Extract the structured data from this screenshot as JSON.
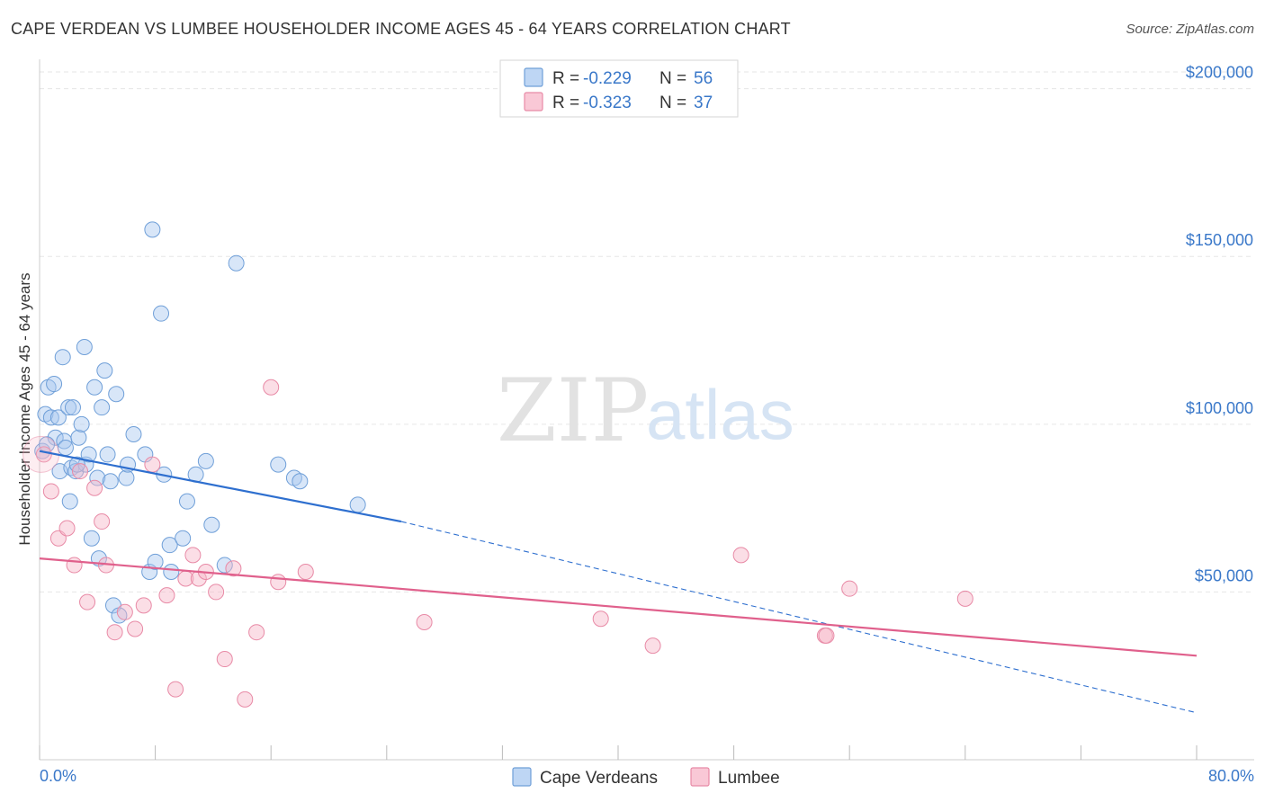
{
  "header": {
    "title": "CAPE VERDEAN VS LUMBEE HOUSEHOLDER INCOME AGES 45 - 64 YEARS CORRELATION CHART",
    "source": "Source: ZipAtlas.com"
  },
  "watermark": {
    "zip": "ZIP",
    "atlas": "atlas"
  },
  "chart_data": {
    "type": "scatter",
    "title": "CAPE VERDEAN VS LUMBEE HOUSEHOLDER INCOME AGES 45 - 64 YEARS CORRELATION CHART",
    "ylabel": "Householder Income Ages 45 - 64 years",
    "xlim": [
      0,
      80
    ],
    "ylim": [
      0,
      205000
    ],
    "x_tick_labels": [
      "0.0%",
      "80.0%"
    ],
    "y_ticks": [
      {
        "value": 50000,
        "label": "$50,000"
      },
      {
        "value": 100000,
        "label": "$100,000"
      },
      {
        "value": 150000,
        "label": "$150,000"
      },
      {
        "value": 200000,
        "label": "$200,000"
      }
    ],
    "grid": true,
    "legend_top": [
      {
        "r_label": "R = ",
        "r_value": "-0.229",
        "n_label": "N = ",
        "n_value": "56",
        "color": "#a8c8f0"
      },
      {
        "r_label": "R = ",
        "r_value": "-0.323",
        "n_label": "N = ",
        "n_value": "37",
        "color": "#f7b6c8"
      }
    ],
    "series": [
      {
        "name": "Cape Verdeans",
        "color": "#a8c8f0",
        "stroke": "#6f9fd8",
        "line_color": "#2e6fcf",
        "trend": {
          "x0": 0,
          "y0": 92000,
          "x1": 25,
          "y1": 71000,
          "x_ext": 80,
          "y_ext": 14000
        },
        "points": [
          [
            0.2,
            92000
          ],
          [
            0.4,
            103000
          ],
          [
            0.6,
            111000
          ],
          [
            0.8,
            102000
          ],
          [
            1.0,
            112000
          ],
          [
            1.1,
            96000
          ],
          [
            1.3,
            102000
          ],
          [
            1.4,
            86000
          ],
          [
            1.6,
            120000
          ],
          [
            1.7,
            95000
          ],
          [
            1.8,
            93000
          ],
          [
            2.0,
            105000
          ],
          [
            2.1,
            77000
          ],
          [
            2.2,
            87000
          ],
          [
            2.3,
            105000
          ],
          [
            2.5,
            86000
          ],
          [
            2.7,
            96000
          ],
          [
            2.9,
            100000
          ],
          [
            3.1,
            123000
          ],
          [
            3.2,
            88000
          ],
          [
            3.4,
            91000
          ],
          [
            3.6,
            66000
          ],
          [
            3.8,
            111000
          ],
          [
            4.0,
            84000
          ],
          [
            4.1,
            60000
          ],
          [
            4.3,
            105000
          ],
          [
            4.5,
            116000
          ],
          [
            4.7,
            91000
          ],
          [
            4.9,
            83000
          ],
          [
            5.1,
            46000
          ],
          [
            5.3,
            109000
          ],
          [
            5.5,
            43000
          ],
          [
            6.0,
            84000
          ],
          [
            6.1,
            88000
          ],
          [
            6.5,
            97000
          ],
          [
            7.3,
            91000
          ],
          [
            7.6,
            56000
          ],
          [
            7.8,
            158000
          ],
          [
            8.0,
            59000
          ],
          [
            8.4,
            133000
          ],
          [
            8.6,
            85000
          ],
          [
            9.0,
            64000
          ],
          [
            9.1,
            56000
          ],
          [
            9.9,
            66000
          ],
          [
            10.2,
            77000
          ],
          [
            10.8,
            85000
          ],
          [
            11.5,
            89000
          ],
          [
            11.9,
            70000
          ],
          [
            12.8,
            58000
          ],
          [
            13.6,
            148000
          ],
          [
            16.5,
            88000
          ],
          [
            17.6,
            84000
          ],
          [
            18.0,
            83000
          ],
          [
            22.0,
            76000
          ],
          [
            0.5,
            94000
          ],
          [
            2.6,
            88000
          ]
        ]
      },
      {
        "name": "Lumbee",
        "color": "#f7b6c8",
        "stroke": "#e88aa6",
        "line_color": "#e0608c",
        "trend": {
          "x0": 0,
          "y0": 60000,
          "x1": 80,
          "y1": 31000
        },
        "points": [
          [
            0.3,
            91000
          ],
          [
            0.8,
            80000
          ],
          [
            1.3,
            66000
          ],
          [
            1.9,
            69000
          ],
          [
            2.4,
            58000
          ],
          [
            2.8,
            86000
          ],
          [
            3.3,
            47000
          ],
          [
            3.8,
            81000
          ],
          [
            4.3,
            71000
          ],
          [
            4.6,
            58000
          ],
          [
            5.2,
            38000
          ],
          [
            5.9,
            44000
          ],
          [
            6.6,
            39000
          ],
          [
            7.2,
            46000
          ],
          [
            7.8,
            88000
          ],
          [
            8.8,
            49000
          ],
          [
            9.4,
            21000
          ],
          [
            10.1,
            54000
          ],
          [
            10.6,
            61000
          ],
          [
            11.0,
            54000
          ],
          [
            11.5,
            56000
          ],
          [
            12.2,
            50000
          ],
          [
            12.8,
            30000
          ],
          [
            13.4,
            57000
          ],
          [
            14.2,
            18000
          ],
          [
            15.0,
            38000
          ],
          [
            16.0,
            111000
          ],
          [
            16.5,
            53000
          ],
          [
            18.4,
            56000
          ],
          [
            26.6,
            41000
          ],
          [
            38.8,
            42000
          ],
          [
            42.4,
            34000
          ],
          [
            48.5,
            61000
          ],
          [
            54.3,
            37000
          ],
          [
            54.4,
            37000
          ],
          [
            56.0,
            51000
          ],
          [
            64.0,
            48000
          ]
        ]
      }
    ]
  }
}
